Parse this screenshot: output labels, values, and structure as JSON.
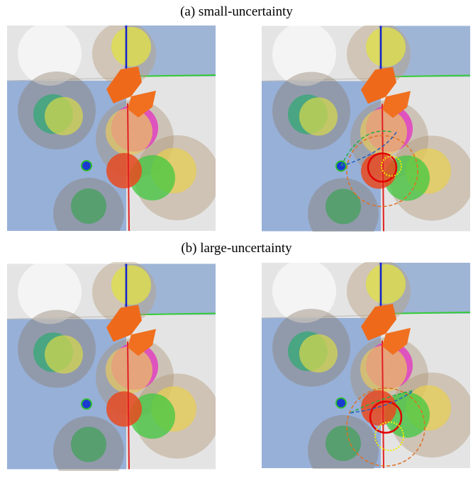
{
  "panels": [
    {
      "caption": "(a) small-uncertainty"
    },
    {
      "caption": "(b) large-uncertainty"
    }
  ]
}
